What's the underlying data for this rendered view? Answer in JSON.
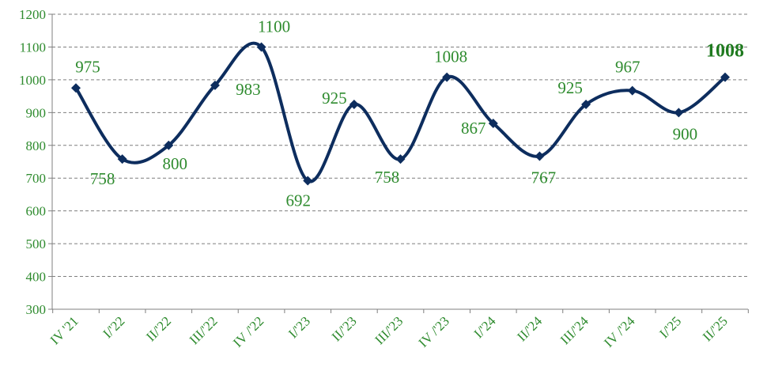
{
  "chart_data": {
    "type": "line",
    "smooth": true,
    "categories": [
      "IV '21",
      "I/'22",
      "II/'22",
      "III/'22",
      "IV /'22",
      "I/'23",
      "II/'23",
      "III/'23",
      "IV /'23",
      "I/'24",
      "II/'24",
      "III/'24",
      "IV /'24",
      "I/'25",
      "II/'25"
    ],
    "series": [
      {
        "values": [
          975,
          758,
          800,
          983,
          1100,
          692,
          925,
          758,
          1008,
          867,
          767,
          925,
          967,
          900,
          1008
        ]
      }
    ],
    "data_labels": [
      "975",
      "758",
      "800",
      "983",
      "1100",
      "692",
      "925",
      "758",
      "1008",
      "867",
      "767",
      "925",
      "967",
      "900",
      "1008"
    ],
    "ylim": [
      300,
      1200
    ],
    "yticks": [
      "300",
      "400",
      "500",
      "600",
      "700",
      "800",
      "900",
      "1000",
      "1100",
      "1200"
    ],
    "grid": true,
    "title": "",
    "xlabel": "",
    "ylabel": "",
    "colors": {
      "line": "#0d2d5e",
      "labels": "#2e8b2e",
      "grid": "#7f7f7f"
    },
    "marker": "diamond"
  }
}
